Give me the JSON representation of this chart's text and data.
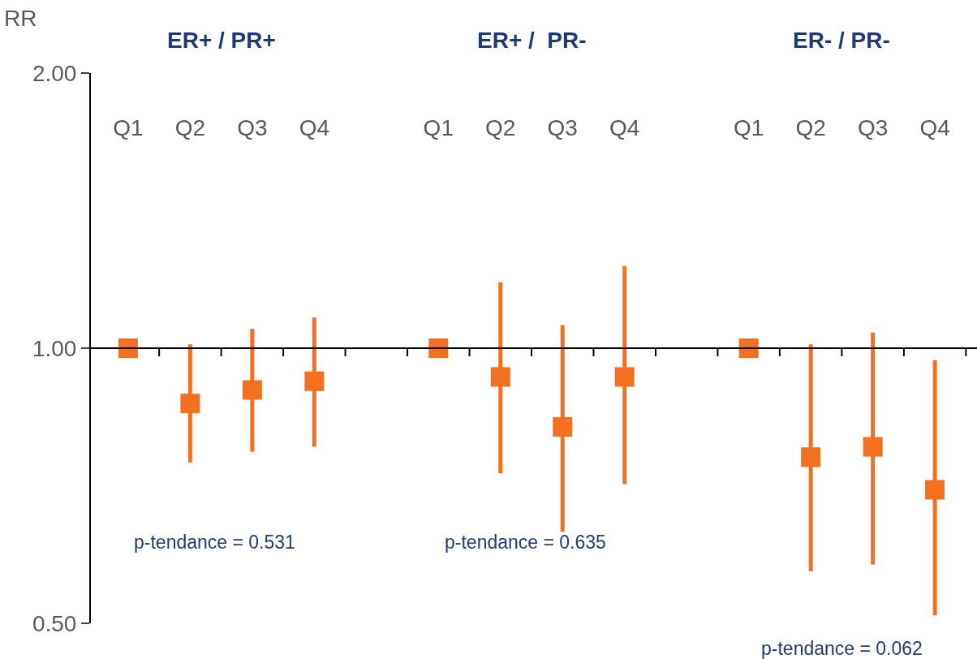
{
  "chart_data": {
    "type": "scatter",
    "ylabel": "RR",
    "categories": [
      "Q1",
      "Q2",
      "Q3",
      "Q4",
      null,
      "Q1",
      "Q2",
      "Q3",
      "Q4",
      null,
      "Q1",
      "Q2",
      "Q3",
      "Q4"
    ],
    "series": [
      {
        "color": "#f37021",
        "values": [
          1.0,
          0.87,
          0.9,
          0.92,
          null,
          1.0,
          0.93,
          0.82,
          0.93,
          null,
          1.0,
          0.76,
          0.78,
          0.7
        ],
        "errors": [
          null,
          [
            0.75,
            1.01
          ],
          [
            0.77,
            1.05
          ],
          [
            0.78,
            1.08
          ],
          null,
          null,
          [
            0.73,
            1.18
          ],
          [
            0.63,
            1.06
          ],
          [
            0.71,
            1.23
          ],
          null,
          null,
          [
            0.57,
            1.01
          ],
          [
            0.58,
            1.04
          ],
          [
            0.51,
            0.97
          ]
        ]
      }
    ],
    "annotations": [
      "ER+ / PR+",
      "ER+ /  PR-",
      "ER- / PR-",
      "p-tendance = 0.531",
      "p-tendance = 0.635",
      "p-tendance = 0.062"
    ],
    "log": true,
    "ylim": [
      0.5,
      2
    ],
    "yticks": [
      {
        "value": 0.5,
        "label": "0.50"
      },
      {
        "value": 1,
        "label": "1.00"
      },
      {
        "value": 2,
        "label": "2.00"
      }
    ],
    "ref_lines": [
      {
        "axis": "y",
        "value": 1,
        "color": "#000000"
      }
    ],
    "marker": "square"
  }
}
